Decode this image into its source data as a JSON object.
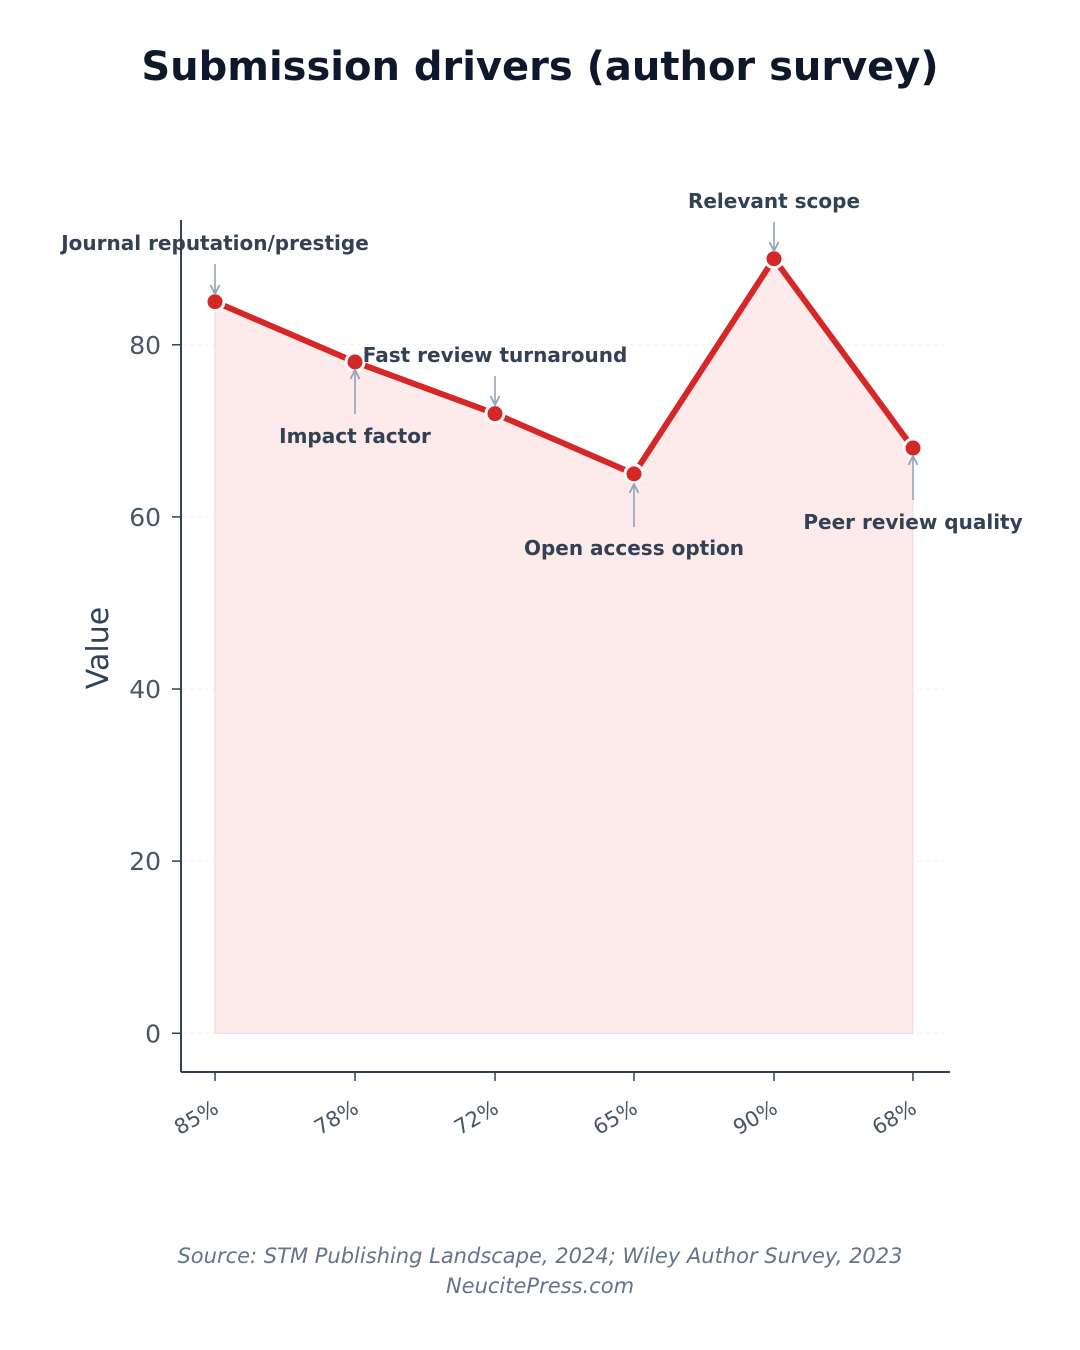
{
  "chart_data": {
    "type": "area",
    "title": "Submission drivers (author survey)",
    "ylabel": "Value",
    "xlabel": "",
    "x": [
      "85%",
      "78%",
      "72%",
      "65%",
      "90%",
      "68%"
    ],
    "series": [
      {
        "values": [
          85,
          78,
          72,
          65,
          90,
          68
        ]
      }
    ],
    "annotations": [
      "Journal reputation/prestige",
      "Impact factor",
      "Fast review turnaround",
      "Open access option",
      "Relevant scope",
      "Peer review quality"
    ],
    "yticks": [
      0,
      20,
      40,
      60,
      80
    ],
    "ylim": [
      -4.5,
      94.5
    ],
    "grid": true,
    "line_color": "#d62728",
    "fill_color": "#fdeaea",
    "axis_color": "#334155"
  },
  "footer": {
    "source": "Source: STM Publishing Landscape, 2024; Wiley Author Survey, 2023",
    "site": "NeucitePress.com"
  }
}
